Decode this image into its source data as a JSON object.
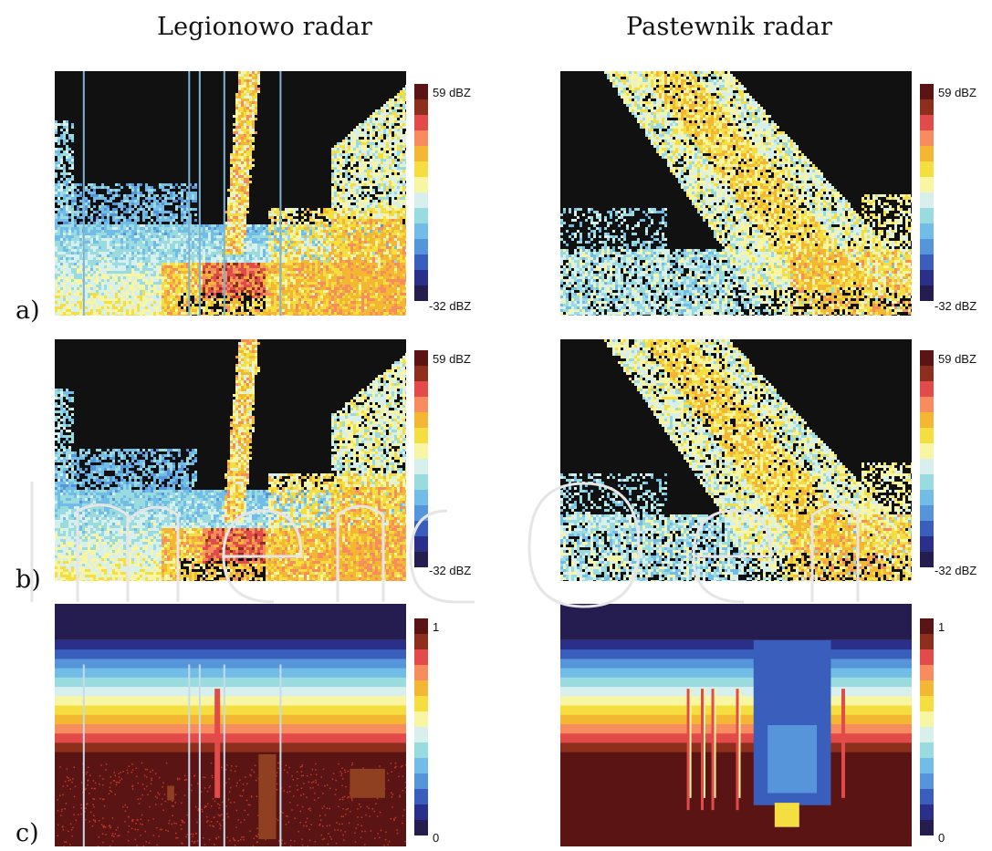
{
  "titles": {
    "left": "Legionowo radar",
    "right": "Pastewnik radar"
  },
  "rows": [
    {
      "label": "a)"
    },
    {
      "label": "b)"
    },
    {
      "label": "c)"
    }
  ],
  "colorbar": {
    "colors": [
      "#5a1414",
      "#8e2f1e",
      "#e34a4a",
      "#f78c5f",
      "#f4b733",
      "#f4de40",
      "#f9f6a3",
      "#d7f0ee",
      "#9adbe0",
      "#72bde8",
      "#5795da",
      "#3a5ebb",
      "#2a2f8a",
      "#251c50"
    ],
    "dbz_top": "59 dBZ",
    "dbz_bottom": "-32 dBZ",
    "prob_top": "1",
    "prob_bottom": "0"
  },
  "chart_data": [
    {
      "type": "heatmap",
      "panel": "a) Legionowo radar",
      "colorbar_range": [
        "-32 dBZ",
        "59 dBZ"
      ]
    },
    {
      "type": "heatmap",
      "panel": "a) Pastewnik radar",
      "colorbar_range": [
        "-32 dBZ",
        "59 dBZ"
      ]
    },
    {
      "type": "heatmap",
      "panel": "b) Legionowo radar",
      "colorbar_range": [
        "-32 dBZ",
        "59 dBZ"
      ]
    },
    {
      "type": "heatmap",
      "panel": "b) Pastewnik radar",
      "colorbar_range": [
        "-32 dBZ",
        "59 dBZ"
      ]
    },
    {
      "type": "heatmap",
      "panel": "c) Legionowo radar",
      "colorbar_range": [
        "0",
        "1"
      ]
    },
    {
      "type": "heatmap",
      "panel": "c) Pastewnik radar",
      "colorbar_range": [
        "0",
        "1"
      ]
    }
  ]
}
